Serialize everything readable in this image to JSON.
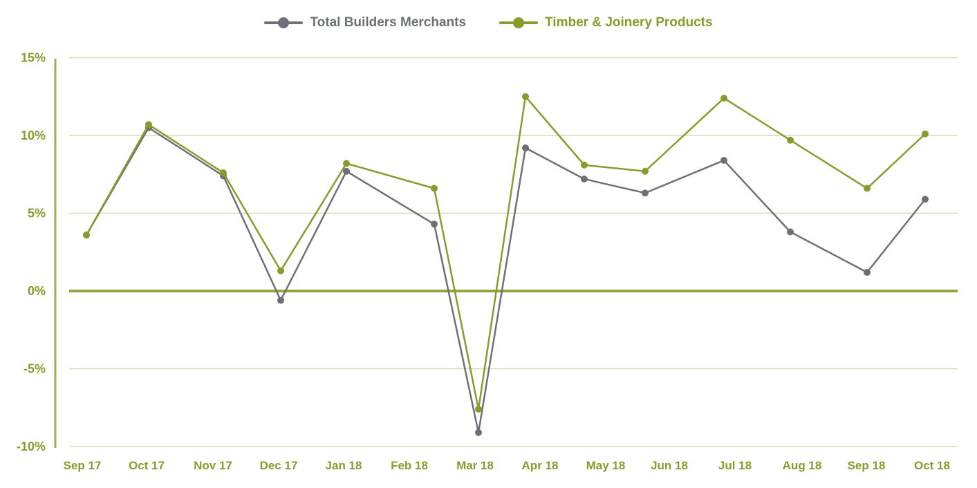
{
  "chart_data": {
    "type": "line",
    "title": "",
    "xlabel": "",
    "ylabel": "",
    "categories": [
      "Sep 17",
      "Oct 17",
      "Nov 17",
      "Dec 17",
      "Jan 18",
      "Feb 18",
      "Mar 18",
      "Apr 18",
      "May 18",
      "Jun 18",
      "Jul 18",
      "Aug 18",
      "Sep 18",
      "Oct 18"
    ],
    "ylim": [
      -10,
      15
    ],
    "yticks": [
      15,
      10,
      5,
      0,
      -5,
      -10
    ],
    "ytick_labels": [
      "15%",
      "10%",
      "5%",
      "0%",
      "-5%",
      "-10%"
    ],
    "grid": true,
    "legend_position": "top-center",
    "series": [
      {
        "name": "Total Builders Merchants",
        "color": "#6d7177",
        "values": [
          3.6,
          10.5,
          7.4,
          -0.6,
          7.7,
          4.3,
          -9.1,
          9.2,
          7.2,
          6.3,
          8.4,
          3.8,
          1.2,
          5.9
        ]
      },
      {
        "name": "Timber & Joinery Products",
        "color": "#8a9a2c",
        "values": [
          3.6,
          10.7,
          7.6,
          1.3,
          8.2,
          6.6,
          -7.6,
          12.5,
          8.1,
          7.7,
          12.4,
          9.7,
          6.6,
          10.1
        ]
      }
    ],
    "axis_color": "#8a9a2c"
  }
}
